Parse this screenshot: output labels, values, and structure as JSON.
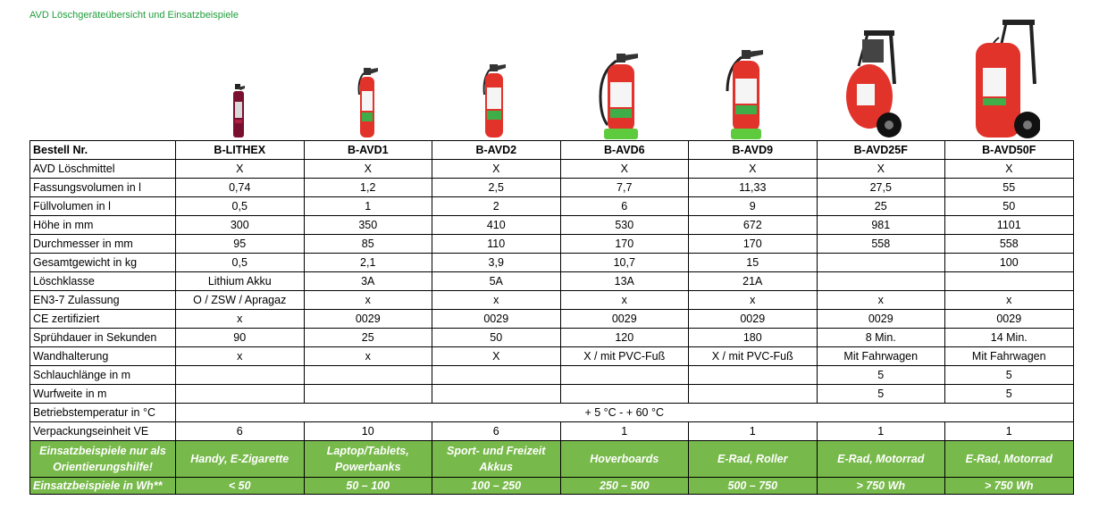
{
  "title": "AVD Löschgeräteübersicht und Einsatzbeispiele",
  "colors": {
    "title_green": "#1e9e3a",
    "row_green": "#77b94a",
    "extinguisher_red": "#e2332b",
    "label_green": "#3fae49"
  },
  "products": [
    {
      "icon": "extinguisher-can-icon"
    },
    {
      "icon": "extinguisher-small-icon"
    },
    {
      "icon": "extinguisher-small-icon"
    },
    {
      "icon": "extinguisher-medium-icon"
    },
    {
      "icon": "extinguisher-medium-icon"
    },
    {
      "icon": "wheeled-extinguisher-icon"
    },
    {
      "icon": "wheeled-extinguisher-icon"
    }
  ],
  "table": {
    "header": [
      "Bestell Nr.",
      "B-LITHEX",
      "B-AVD1",
      "B-AVD2",
      "B-AVD6",
      "B-AVD9",
      "B-AVD25F",
      "B-AVD50F"
    ],
    "rows": [
      [
        "AVD Löschmittel",
        "X",
        "X",
        "X",
        "X",
        "X",
        "X",
        "X"
      ],
      [
        "Fassungsvolumen in l",
        "0,74",
        "1,2",
        "2,5",
        "7,7",
        "11,33",
        "27,5",
        "55"
      ],
      [
        "Füllvolumen in l",
        "0,5",
        "1",
        "2",
        "6",
        "9",
        "25",
        "50"
      ],
      [
        "Höhe in mm",
        "300",
        "350",
        "410",
        "530",
        "672",
        "981",
        "1101"
      ],
      [
        "Durchmesser in mm",
        "95",
        "85",
        "110",
        "170",
        "170",
        "558",
        "558"
      ],
      [
        "Gesamtgewicht in kg",
        "0,5",
        "2,1",
        "3,9",
        "10,7",
        "15",
        "",
        "100"
      ],
      [
        "Löschklasse",
        "Lithium Akku",
        "3A",
        "5A",
        "13A",
        "21A",
        "",
        ""
      ],
      [
        "EN3-7 Zulassung",
        "O / ZSW / Apragaz",
        "x",
        "x",
        "x",
        "x",
        "x",
        "x"
      ],
      [
        "CE zertifiziert",
        "x",
        "0029",
        "0029",
        "0029",
        "0029",
        "0029",
        "0029"
      ],
      [
        "Sprühdauer in Sekunden",
        "90",
        "25",
        "50",
        "120",
        "180",
        "8 Min.",
        "14 Min."
      ],
      [
        "Wandhalterung",
        "x",
        "x",
        "X",
        "X / mit PVC-Fuß",
        "X / mit PVC-Fuß",
        "Mit Fahrwagen",
        "Mit Fahrwagen"
      ],
      [
        "Schlauchlänge in m",
        "",
        "",
        "",
        "",
        "",
        "5",
        "5"
      ],
      [
        "Wurfweite in m",
        "",
        "",
        "",
        "",
        "",
        "5",
        "5"
      ]
    ],
    "temperature": {
      "label": "Betriebstemperatur in °C",
      "value": "+ 5 °C - + 60 °C"
    },
    "packaging": [
      "Verpackungseinheit VE",
      "6",
      "10",
      "6",
      "1",
      "1",
      "1",
      "1"
    ],
    "usage": [
      "Einsatzbeispiele nur als Orientierungshilfe!",
      "Handy, E-Zigarette",
      "Laptop/Tablets, Powerbanks",
      "Sport- und Freizeit Akkus",
      "Hoverboards",
      "E-Rad, Roller",
      "E-Rad, Motorrad",
      "E-Rad, Motorrad"
    ],
    "wh": [
      "Einsatzbeispiele in Wh**",
      "< 50",
      "50 – 100",
      "100 – 250",
      "250 – 500",
      "500 – 750",
      "> 750 Wh",
      "> 750 Wh"
    ]
  }
}
